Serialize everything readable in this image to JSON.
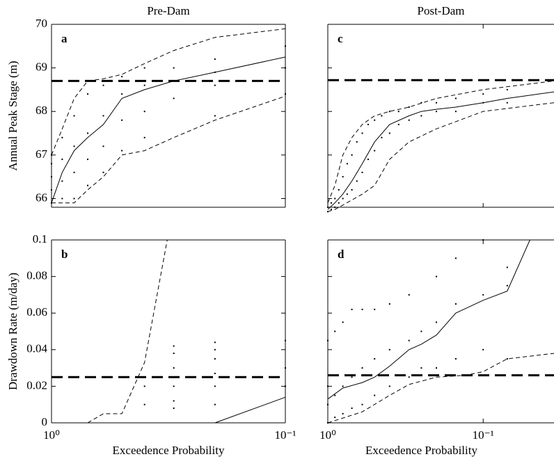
{
  "chart_data": [
    {
      "type": "line",
      "title": "Pre-Dam",
      "label": "a",
      "ylabel": "Annual Peak Stage (m)",
      "log_x": true,
      "xlim": [
        1,
        0.1
      ],
      "xticks": [
        {
          "value": 1,
          "label": "10⁰"
        },
        {
          "value": 0.1,
          "label": "10⁻¹"
        }
      ],
      "ylim": [
        65.8,
        70
      ],
      "yticks": [
        66,
        67,
        68,
        69,
        70
      ],
      "ytick_labels": true,
      "xtick_labels": false,
      "series": [
        {
          "style": "dots",
          "color": "#000",
          "x": [
            1,
            1,
            1,
            1,
            1,
            0.9,
            0.9,
            0.9,
            0.9,
            0.8,
            0.8,
            0.8,
            0.8,
            0.7,
            0.7,
            0.7,
            0.7,
            0.6,
            0.6,
            0.6,
            0.6,
            0.5,
            0.5,
            0.5,
            0.5,
            0.4,
            0.4,
            0.4,
            0.4,
            0.3,
            0.3,
            0.3,
            0.2,
            0.2,
            0.2,
            0.2,
            0.1,
            0.1,
            0.1
          ],
          "values": [
            65.9,
            66.2,
            66.5,
            66.8,
            67.0,
            66.0,
            66.4,
            66.9,
            67.4,
            66.0,
            66.6,
            67.2,
            67.9,
            66.3,
            66.9,
            67.5,
            68.4,
            66.6,
            67.2,
            67.9,
            68.6,
            67.1,
            67.8,
            68.4,
            68.8,
            67.4,
            68.0,
            68.6,
            69.0,
            68.3,
            68.7,
            69.0,
            67.9,
            68.6,
            68.9,
            69.2,
            68.4,
            69.0,
            69.5
          ]
        },
        {
          "style": "solid",
          "color": "#000",
          "x": [
            1,
            0.9,
            0.8,
            0.7,
            0.6,
            0.5,
            0.4,
            0.3,
            0.2,
            0.1
          ],
          "values": [
            65.9,
            66.6,
            67.1,
            67.4,
            67.7,
            68.3,
            68.5,
            68.7,
            68.9,
            69.25
          ]
        },
        {
          "style": "dashed",
          "color": "#000",
          "x": [
            1,
            0.9,
            0.8,
            0.7,
            0.6,
            0.5,
            0.4,
            0.3,
            0.2,
            0.1
          ],
          "values": [
            67.0,
            67.6,
            68.3,
            68.7,
            68.75,
            68.85,
            69.1,
            69.4,
            69.7,
            69.9
          ]
        },
        {
          "style": "dashed",
          "color": "#000",
          "x": [
            1,
            0.9,
            0.8,
            0.7,
            0.6,
            0.5,
            0.4,
            0.3,
            0.2,
            0.1
          ],
          "values": [
            65.9,
            65.9,
            65.9,
            66.2,
            66.5,
            67.0,
            67.1,
            67.4,
            67.8,
            68.35
          ]
        },
        {
          "style": "threshold",
          "color": "#000",
          "x": [
            1,
            0.1
          ],
          "values": [
            68.7,
            68.7
          ]
        }
      ]
    },
    {
      "type": "line",
      "label": "b",
      "ylabel": "Drawdown Rate (m/day)",
      "xlabel": "Exceedence Probability",
      "log_x": true,
      "xlim": [
        1,
        0.1
      ],
      "xticks": [
        {
          "value": 1,
          "label": "10⁰"
        },
        {
          "value": 0.1,
          "label": "10⁻¹"
        }
      ],
      "ylim": [
        0,
        0.1
      ],
      "yticks": [
        0,
        0.02,
        0.04,
        0.06,
        0.08,
        0.1
      ],
      "ytick_labels": true,
      "xtick_labels": true,
      "series": [
        {
          "style": "dots",
          "color": "#000",
          "x": [
            0.4,
            0.4,
            0.3,
            0.3,
            0.3,
            0.3,
            0.3,
            0.3,
            0.2,
            0.2,
            0.2,
            0.2,
            0.2,
            0.2,
            0.1,
            0.1,
            0.1
          ],
          "values": [
            0.01,
            0.02,
            0.042,
            0.038,
            0.03,
            0.02,
            0.012,
            0.008,
            0.044,
            0.04,
            0.035,
            0.027,
            0.02,
            0.01,
            0.045,
            0.03,
            0.02
          ]
        },
        {
          "style": "solid",
          "color": "#000",
          "x": [
            0.2,
            0.1
          ],
          "values": [
            0,
            0.014
          ]
        },
        {
          "style": "dashed",
          "color": "#000",
          "x": [
            0.7,
            0.6,
            0.5,
            0.4,
            0.32
          ],
          "values": [
            0,
            0.005,
            0.005,
            0.033,
            0.1
          ]
        },
        {
          "style": "threshold",
          "color": "#000",
          "x": [
            1,
            0.1
          ],
          "values": [
            0.025,
            0.025
          ]
        }
      ]
    },
    {
      "type": "line",
      "title": "Post-Dam",
      "label": "c",
      "log_x": true,
      "xlim": [
        1,
        0.035
      ],
      "xticks": [
        {
          "value": 1,
          "label": "10⁰"
        },
        {
          "value": 0.1,
          "label": "10⁻¹"
        }
      ],
      "ylim": [
        65.8,
        70
      ],
      "yticks": [
        66,
        67,
        68,
        69,
        70
      ],
      "ytick_labels": false,
      "xtick_labels": false,
      "series": [
        {
          "style": "dots",
          "color": "#000",
          "x": [
            1,
            1,
            0.95,
            0.95,
            0.9,
            0.9,
            0.85,
            0.85,
            0.8,
            0.8,
            0.75,
            0.75,
            0.7,
            0.7,
            0.65,
            0.65,
            0.6,
            0.6,
            0.55,
            0.55,
            0.5,
            0.5,
            0.45,
            0.45,
            0.4,
            0.4,
            0.35,
            0.35,
            0.3,
            0.3,
            0.25,
            0.25,
            0.2,
            0.2,
            0.15,
            0.15,
            0.1,
            0.1,
            0.07,
            0.07
          ],
          "values": [
            65.7,
            65.8,
            65.75,
            65.9,
            65.8,
            66.0,
            65.9,
            66.2,
            66.0,
            66.5,
            66.1,
            66.8,
            66.2,
            67.0,
            66.4,
            67.3,
            66.6,
            67.5,
            66.9,
            67.7,
            67.1,
            67.8,
            67.4,
            67.9,
            67.5,
            68.0,
            67.7,
            68.0,
            67.8,
            68.1,
            67.9,
            68.2,
            68.0,
            68.2,
            68.0,
            68.3,
            68.2,
            68.4,
            68.2,
            68.5
          ]
        },
        {
          "style": "solid",
          "color": "#000",
          "x": [
            1,
            0.9,
            0.8,
            0.7,
            0.6,
            0.5,
            0.4,
            0.3,
            0.25,
            0.2,
            0.15,
            0.1,
            0.07,
            0.035
          ],
          "values": [
            65.75,
            65.9,
            66.1,
            66.4,
            66.8,
            67.3,
            67.7,
            67.9,
            68.0,
            68.05,
            68.1,
            68.2,
            68.3,
            68.45
          ]
        },
        {
          "style": "dashed",
          "color": "#000",
          "x": [
            1,
            0.9,
            0.8,
            0.7,
            0.6,
            0.5,
            0.4,
            0.3,
            0.2,
            0.1,
            0.035
          ],
          "values": [
            65.9,
            66.3,
            67.0,
            67.4,
            67.7,
            67.9,
            68.0,
            68.1,
            68.3,
            68.5,
            68.7
          ]
        },
        {
          "style": "dashed",
          "color": "#000",
          "x": [
            1,
            0.9,
            0.8,
            0.6,
            0.5,
            0.4,
            0.3,
            0.2,
            0.1,
            0.035
          ],
          "values": [
            65.7,
            65.75,
            65.85,
            66.1,
            66.3,
            66.9,
            67.3,
            67.6,
            68.0,
            68.2
          ]
        },
        {
          "style": "threshold",
          "color": "#000",
          "x": [
            1,
            0.035
          ],
          "values": [
            68.72,
            68.72
          ]
        }
      ]
    },
    {
      "type": "line",
      "label": "d",
      "xlabel": "Exceedence Probability",
      "log_x": true,
      "xlim": [
        1,
        0.035
      ],
      "xticks": [
        {
          "value": 1,
          "label": "10⁰"
        },
        {
          "value": 0.1,
          "label": "10⁻¹"
        }
      ],
      "ylim": [
        0,
        0.1
      ],
      "yticks": [
        0,
        0.02,
        0.04,
        0.06,
        0.08,
        0.1
      ],
      "ytick_labels": false,
      "xtick_labels": true,
      "series": [
        {
          "style": "dots",
          "color": "#000",
          "x": [
            1,
            1,
            1,
            1,
            0.9,
            0.9,
            0.9,
            0.8,
            0.8,
            0.8,
            0.7,
            0.7,
            0.7,
            0.6,
            0.6,
            0.6,
            0.5,
            0.5,
            0.5,
            0.4,
            0.4,
            0.4,
            0.3,
            0.3,
            0.3,
            0.25,
            0.25,
            0.2,
            0.2,
            0.2,
            0.15,
            0.15,
            0.15,
            0.1,
            0.1,
            0.1,
            0.07,
            0.07,
            0.07
          ],
          "values": [
            0.0,
            0.01,
            0.02,
            0.045,
            0.003,
            0.015,
            0.05,
            0.005,
            0.02,
            0.055,
            0.008,
            0.025,
            0.062,
            0.01,
            0.03,
            0.062,
            0.015,
            0.035,
            0.062,
            0.02,
            0.04,
            0.065,
            0.025,
            0.045,
            0.07,
            0.03,
            0.05,
            0.03,
            0.055,
            0.08,
            0.035,
            0.065,
            0.09,
            0.04,
            0.07,
            0.1,
            0.035,
            0.075,
            0.085
          ]
        },
        {
          "style": "solid",
          "color": "#000",
          "x": [
            1,
            0.8,
            0.6,
            0.5,
            0.4,
            0.3,
            0.25,
            0.2,
            0.15,
            0.1,
            0.07,
            0.05
          ],
          "values": [
            0.013,
            0.019,
            0.022,
            0.025,
            0.031,
            0.04,
            0.043,
            0.048,
            0.06,
            0.067,
            0.072,
            0.1
          ]
        },
        {
          "style": "dashed",
          "color": "#000",
          "x": [
            1,
            0.6,
            0.4,
            0.3,
            0.2,
            0.13,
            0.1,
            0.07,
            0.035
          ],
          "values": [
            0,
            0.006,
            0.015,
            0.021,
            0.025,
            0.026,
            0.028,
            0.035,
            0.038
          ]
        },
        {
          "style": "threshold",
          "color": "#000",
          "x": [
            1,
            0.035
          ],
          "values": [
            0.026,
            0.026
          ]
        }
      ]
    }
  ]
}
